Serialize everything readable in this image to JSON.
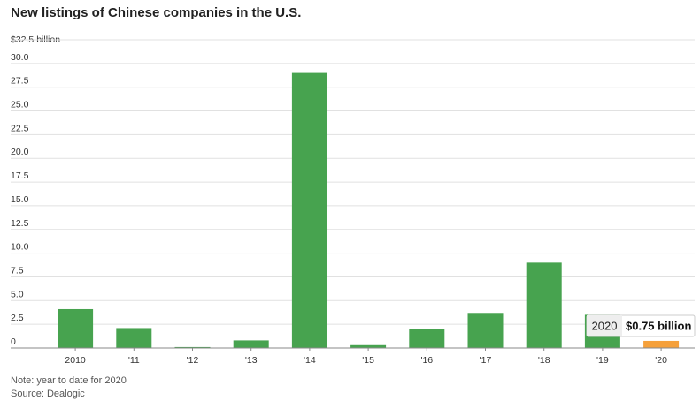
{
  "chart_data": {
    "type": "bar",
    "title": "New listings of Chinese companies in the U.S.",
    "ylabel_unit": "$32.5 billion",
    "categories": [
      "2010",
      "'11",
      "'12",
      "'13",
      "'14",
      "'15",
      "'16",
      "'17",
      "'18",
      "'19",
      "'20"
    ],
    "values": [
      4.1,
      2.1,
      0.1,
      0.8,
      29.0,
      0.3,
      2.0,
      3.7,
      9.0,
      3.5,
      0.75
    ],
    "y_ticks": [
      "0",
      "2.5",
      "5.0",
      "7.5",
      "10.0",
      "12.5",
      "15.0",
      "17.5",
      "20.0",
      "22.5",
      "25.0",
      "27.5",
      "30.0"
    ],
    "ylim": [
      0,
      32.5
    ],
    "grid": true,
    "colors": {
      "bar": "#47a34f",
      "highlight": "#f5a03a",
      "grid": "#e1e1e1",
      "axis": "#888888"
    },
    "highlight_index": 10,
    "tooltip": {
      "label": "2020",
      "value": "$0.75 billion"
    }
  },
  "footer": {
    "note": "Note: year to date for 2020",
    "source": "Source: Dealogic"
  }
}
